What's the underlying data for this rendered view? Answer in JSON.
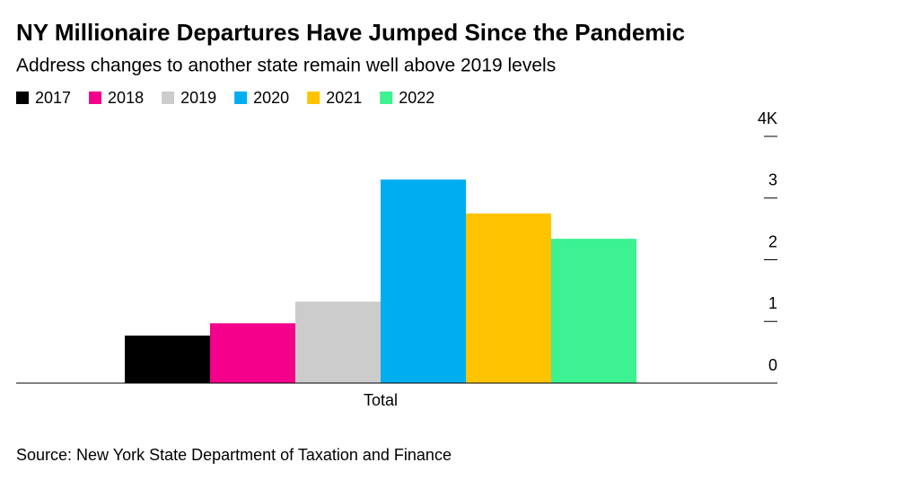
{
  "chart_data": {
    "type": "bar",
    "title": "NY Millionaire Departures Have Jumped Since the Pandemic",
    "subtitle": "Address changes to another state remain well above 2019 levels",
    "source": "Source: New York State Department of Taxation and Finance",
    "categories": [
      "Total"
    ],
    "series": [
      {
        "name": "2017",
        "color": "#000000",
        "values": [
          0.77
        ]
      },
      {
        "name": "2018",
        "color": "#f5008b",
        "values": [
          0.97
        ]
      },
      {
        "name": "2019",
        "color": "#cccccc",
        "values": [
          1.32
        ]
      },
      {
        "name": "2020",
        "color": "#00aeef",
        "values": [
          3.3
        ]
      },
      {
        "name": "2021",
        "color": "#ffc300",
        "values": [
          2.75
        ]
      },
      {
        "name": "2022",
        "color": "#3cf291",
        "values": [
          2.34
        ]
      }
    ],
    "ylim": [
      0,
      4
    ],
    "yticks": [
      0,
      1,
      2,
      3,
      {
        "value": 4,
        "label": "4K"
      }
    ]
  }
}
